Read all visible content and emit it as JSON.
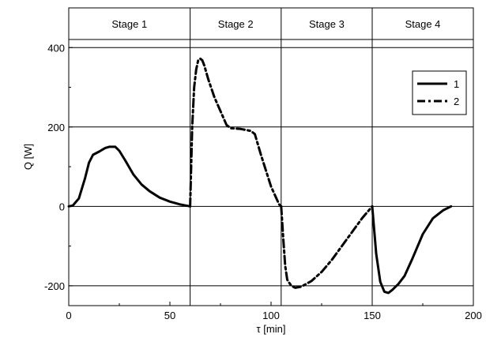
{
  "chart_data": {
    "type": "line",
    "xlabel": "τ [min]",
    "ylabel": "Q [W]",
    "xlim": [
      0,
      200
    ],
    "ylim": [
      -250,
      500
    ],
    "x_ticks": [
      0,
      50,
      100,
      150,
      200
    ],
    "y_ticks": [
      -200,
      0,
      200,
      400
    ],
    "grid": true,
    "legend_position": "top-right",
    "stages": [
      {
        "label": "Stage 1",
        "start": 0,
        "end": 60
      },
      {
        "label": "Stage 2",
        "start": 60,
        "end": 105
      },
      {
        "label": "Stage 3",
        "start": 105,
        "end": 150
      },
      {
        "label": "Stage 4",
        "start": 150,
        "end": 200
      }
    ],
    "series": [
      {
        "name": "1",
        "style": "solid",
        "segments": [
          {
            "x": [
              0,
              2,
              5,
              8,
              10,
              12,
              15,
              18,
              20,
              23,
              25,
              28,
              32,
              36,
              40,
              45,
              50,
              55,
              59,
              60
            ],
            "y": [
              0,
              2,
              20,
              70,
              110,
              130,
              138,
              147,
              150,
              150,
              140,
              115,
              80,
              55,
              38,
              22,
              12,
              5,
              1,
              0
            ]
          },
          {
            "x": [
              150,
              152,
              154,
              156,
              158,
              160,
              163,
              166,
              170,
              175,
              180,
              185,
              189
            ],
            "y": [
              0,
              -120,
              -190,
              -215,
              -218,
              -210,
              -195,
              -175,
              -130,
              -70,
              -30,
              -10,
              0
            ]
          }
        ]
      },
      {
        "name": "2",
        "style": "dash-dot",
        "segments": [
          {
            "x": [
              60,
              61,
              62,
              63,
              64,
              65,
              66,
              67,
              69,
              72,
              75,
              78,
              80,
              85,
              90,
              92,
              95,
              100,
              104,
              105
            ],
            "y": [
              0,
              200,
              300,
              345,
              368,
              372,
              368,
              355,
              320,
              275,
              240,
              205,
              197,
              195,
              190,
              182,
              130,
              50,
              5,
              0
            ]
          },
          {
            "x": [
              105,
              106,
              107,
              108,
              110,
              112,
              115,
              120,
              125,
              130,
              135,
              140,
              145,
              150
            ],
            "y": [
              0,
              -80,
              -150,
              -185,
              -200,
              -205,
              -202,
              -188,
              -165,
              -135,
              -100,
              -65,
              -30,
              0
            ]
          }
        ]
      }
    ]
  }
}
